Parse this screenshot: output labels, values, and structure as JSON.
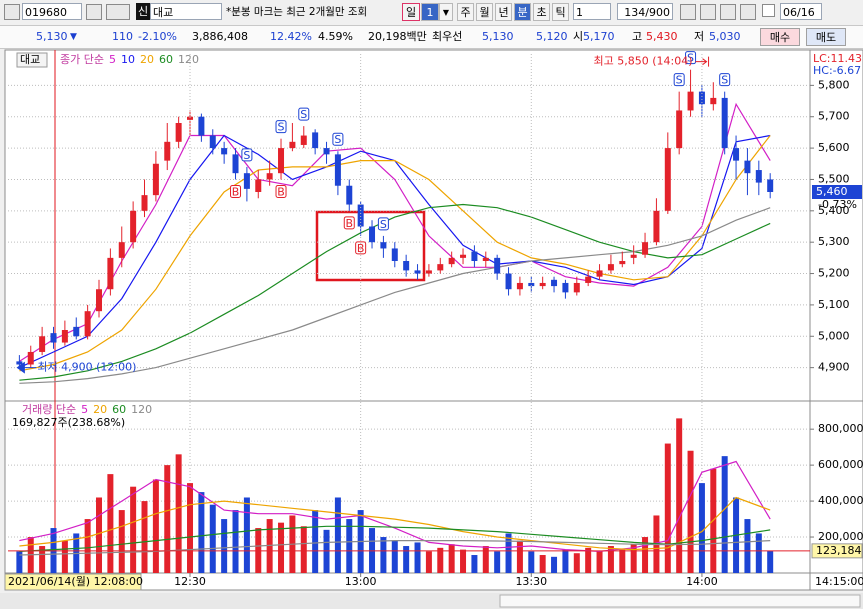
{
  "toolbar": {
    "code": "019680",
    "market": "신",
    "name": "대교",
    "notice": "*분봉 마크는 최근 2개월만 조회",
    "day": "일",
    "day_count": "1",
    "periods": [
      "주",
      "월",
      "년",
      "분",
      "초",
      "틱"
    ],
    "interval": "1",
    "count": "134/900",
    "date": "06/16"
  },
  "quote": {
    "price": "5,130",
    "arrow": "▼",
    "change": "110",
    "change_pct": "-2.10%",
    "volume": "3,886,408",
    "turnover_pct": "12.42%",
    "volume_ratio": "4.59%",
    "amount": "20,198백만",
    "best_label": "최우선",
    "ask": "5,130",
    "bid": "5,120",
    "open_label": "시",
    "open": "5,170",
    "high_label": "고",
    "high": "5,430",
    "low_label": "저",
    "low": "5,030",
    "buy": "매수",
    "sell": "매도"
  },
  "chart_data": [
    {
      "type": "candlestick",
      "name": "대교",
      "indicator_label": "종가 단순",
      "grid": true,
      "colors": {
        "up": "#e3222b",
        "down": "#1d44d4"
      },
      "xlim": [
        -2,
        139
      ],
      "ylim": [
        4800,
        5900
      ],
      "yticks": [
        {
          "value": 4900,
          "label": "4,900"
        },
        {
          "value": 5000,
          "label": "5,000"
        },
        {
          "value": 5100,
          "label": "5,100"
        },
        {
          "value": 5200,
          "label": "5,200"
        },
        {
          "value": 5300,
          "label": "5,300"
        },
        {
          "value": 5400,
          "label": "5,400"
        },
        {
          "value": 5500,
          "label": "5,500"
        },
        {
          "value": 5600,
          "label": "5,600"
        },
        {
          "value": 5700,
          "label": "5,700"
        },
        {
          "value": 5800,
          "label": "5,800"
        }
      ],
      "x": [
        0,
        2,
        4,
        6,
        8,
        10,
        12,
        14,
        16,
        18,
        20,
        22,
        24,
        26,
        28,
        30,
        32,
        34,
        36,
        38,
        40,
        42,
        44,
        46,
        48,
        50,
        52,
        54,
        56,
        58,
        60,
        62,
        64,
        66,
        68,
        70,
        72,
        74,
        76,
        78,
        80,
        82,
        84,
        86,
        88,
        90,
        92,
        94,
        96,
        98,
        100,
        102,
        104,
        106,
        108,
        110,
        112,
        114,
        116,
        118,
        120,
        122,
        124,
        126,
        128,
        130,
        132
      ],
      "open": [
        4920,
        4910,
        4950,
        5010,
        4980,
        5030,
        5000,
        5080,
        5150,
        5250,
        5300,
        5400,
        5450,
        5560,
        5620,
        5690,
        5700,
        5640,
        5600,
        5580,
        5520,
        5460,
        5500,
        5520,
        5600,
        5610,
        5650,
        5600,
        5580,
        5480,
        5420,
        5350,
        5300,
        5280,
        5240,
        5210,
        5200,
        5210,
        5230,
        5250,
        5270,
        5240,
        5250,
        5200,
        5150,
        5170,
        5160,
        5180,
        5170,
        5140,
        5170,
        5190,
        5210,
        5230,
        5250,
        5260,
        5300,
        5400,
        5600,
        5720,
        5780,
        5740,
        5760,
        5600,
        5560,
        5530,
        5500
      ],
      "high": [
        4940,
        4970,
        5030,
        5030,
        5050,
        5060,
        5100,
        5180,
        5280,
        5350,
        5430,
        5500,
        5590,
        5680,
        5700,
        5720,
        5710,
        5660,
        5620,
        5600,
        5540,
        5530,
        5560,
        5630,
        5680,
        5670,
        5660,
        5620,
        5590,
        5500,
        5430,
        5370,
        5320,
        5300,
        5260,
        5230,
        5230,
        5250,
        5270,
        5280,
        5290,
        5270,
        5260,
        5220,
        5190,
        5190,
        5190,
        5190,
        5180,
        5190,
        5210,
        5230,
        5260,
        5270,
        5290,
        5330,
        5440,
        5650,
        5780,
        5850,
        5800,
        5810,
        5780,
        5640,
        5600,
        5560,
        5520
      ],
      "low": [
        4900,
        4900,
        4940,
        4960,
        4970,
        4990,
        4990,
        5060,
        5130,
        5220,
        5280,
        5380,
        5430,
        5530,
        5600,
        5640,
        5620,
        5580,
        5550,
        5500,
        5430,
        5440,
        5480,
        5500,
        5590,
        5600,
        5580,
        5550,
        5450,
        5400,
        5320,
        5280,
        5250,
        5220,
        5190,
        5180,
        5190,
        5200,
        5220,
        5230,
        5220,
        5220,
        5180,
        5130,
        5130,
        5140,
        5150,
        5140,
        5120,
        5130,
        5160,
        5180,
        5200,
        5220,
        5230,
        5250,
        5290,
        5390,
        5580,
        5700,
        5700,
        5720,
        5580,
        5500,
        5450,
        5450,
        5440
      ],
      "close": [
        4910,
        4950,
        5000,
        4980,
        5020,
        5000,
        5080,
        5150,
        5250,
        5300,
        5400,
        5450,
        5550,
        5620,
        5680,
        5700,
        5640,
        5600,
        5580,
        5520,
        5470,
        5500,
        5520,
        5600,
        5620,
        5640,
        5600,
        5580,
        5480,
        5420,
        5350,
        5300,
        5280,
        5240,
        5210,
        5200,
        5210,
        5230,
        5250,
        5260,
        5240,
        5250,
        5200,
        5150,
        5170,
        5160,
        5170,
        5160,
        5140,
        5170,
        5190,
        5210,
        5230,
        5240,
        5260,
        5300,
        5400,
        5600,
        5720,
        5780,
        5740,
        5760,
        5600,
        5560,
        5520,
        5490,
        5460
      ],
      "ma_x": [
        0,
        6,
        12,
        18,
        24,
        30,
        36,
        42,
        48,
        54,
        60,
        66,
        72,
        78,
        84,
        90,
        96,
        102,
        108,
        114,
        120,
        126,
        132
      ],
      "ma_series": [
        {
          "name": "5",
          "color": "#d21fc6",
          "values": [
            4920,
            4990,
            5040,
            5240,
            5420,
            5640,
            5640,
            5500,
            5480,
            5590,
            5600,
            5500,
            5320,
            5220,
            5220,
            5240,
            5190,
            5170,
            5160,
            5220,
            5350,
            5740,
            5560
          ]
        },
        {
          "name": "10",
          "color": "#1717f0",
          "values": [
            4900,
            4950,
            5000,
            5120,
            5300,
            5500,
            5640,
            5580,
            5500,
            5540,
            5590,
            5560,
            5420,
            5290,
            5230,
            5240,
            5220,
            5180,
            5165,
            5190,
            5280,
            5620,
            5640
          ]
        },
        {
          "name": "20",
          "color": "#eea400",
          "values": [
            4890,
            4910,
            4950,
            5020,
            5150,
            5320,
            5460,
            5530,
            5540,
            5540,
            5560,
            5560,
            5500,
            5400,
            5300,
            5250,
            5230,
            5200,
            5180,
            5190,
            5320,
            5500,
            5640
          ]
        },
        {
          "name": "60",
          "color": "#1c8c22",
          "values": [
            4860,
            4870,
            4890,
            4920,
            4960,
            5010,
            5070,
            5130,
            5200,
            5270,
            5330,
            5380,
            5410,
            5420,
            5410,
            5380,
            5340,
            5300,
            5270,
            5250,
            5260,
            5310,
            5360
          ]
        },
        {
          "name": "120",
          "color": "#8a8a8a",
          "values": [
            4850,
            4855,
            4865,
            4880,
            4900,
            4930,
            4960,
            4990,
            5020,
            5060,
            5100,
            5140,
            5170,
            5200,
            5220,
            5240,
            5250,
            5260,
            5270,
            5290,
            5320,
            5370,
            5410
          ]
        }
      ],
      "signals": [
        {
          "x": 38,
          "label": "B"
        },
        {
          "x": 40,
          "label": "S"
        },
        {
          "x": 46,
          "label": "B"
        },
        {
          "x": 46,
          "label": "S"
        },
        {
          "x": 50,
          "label": "S"
        },
        {
          "x": 56,
          "label": "S"
        },
        {
          "x": 58,
          "label": "B"
        },
        {
          "x": 60,
          "label": "B"
        },
        {
          "x": 64,
          "label": "S"
        },
        {
          "x": 116,
          "label": "S"
        },
        {
          "x": 118,
          "label": "S"
        },
        {
          "x": 124,
          "label": "S"
        }
      ],
      "high_label": "최고 5,850 (14:04)",
      "low_label": "최저 4,900 (12:00)",
      "lc_label": "LC:11.43",
      "hc_label": "HC:-6.67",
      "last_label": "5,460",
      "change_label": "-0.73%"
    },
    {
      "type": "bar",
      "indicator_label": "거래량 단순",
      "info": "169,827주(238.68%)",
      "grid": true,
      "xlim": [
        -2,
        139
      ],
      "ylim": [
        0,
        940000
      ],
      "xticks": [
        {
          "value": 30,
          "label": "12:30"
        },
        {
          "value": 60,
          "label": "13:00"
        },
        {
          "value": 90,
          "label": "13:30"
        },
        {
          "value": 120,
          "label": "14:00"
        }
      ],
      "yticks": [
        {
          "value": 200000,
          "label": "200,000"
        },
        {
          "value": 400000,
          "label": "400,000"
        },
        {
          "value": 600000,
          "label": "600,000"
        },
        {
          "value": 800000,
          "label": "800,000"
        }
      ],
      "x": [
        0,
        2,
        4,
        6,
        8,
        10,
        12,
        14,
        16,
        18,
        20,
        22,
        24,
        26,
        28,
        30,
        32,
        34,
        36,
        38,
        40,
        42,
        44,
        46,
        48,
        50,
        52,
        54,
        56,
        58,
        60,
        62,
        64,
        66,
        68,
        70,
        72,
        74,
        76,
        78,
        80,
        82,
        84,
        86,
        88,
        90,
        92,
        94,
        96,
        98,
        100,
        102,
        104,
        106,
        108,
        110,
        112,
        114,
        116,
        118,
        120,
        122,
        124,
        126,
        128,
        130,
        132
      ],
      "values": [
        120000,
        200000,
        150000,
        250000,
        180000,
        220000,
        300000,
        420000,
        550000,
        350000,
        480000,
        400000,
        520000,
        600000,
        660000,
        500000,
        450000,
        380000,
        300000,
        350000,
        420000,
        250000,
        300000,
        280000,
        320000,
        260000,
        350000,
        240000,
        420000,
        300000,
        350000,
        250000,
        200000,
        180000,
        150000,
        170000,
        120000,
        140000,
        160000,
        130000,
        100000,
        150000,
        120000,
        220000,
        180000,
        120000,
        100000,
        90000,
        130000,
        110000,
        140000,
        120000,
        150000,
        130000,
        160000,
        200000,
        320000,
        720000,
        860000,
        680000,
        500000,
        580000,
        650000,
        420000,
        300000,
        220000,
        123184
      ],
      "ma_x": [
        0,
        6,
        12,
        18,
        24,
        30,
        36,
        42,
        48,
        54,
        60,
        66,
        72,
        78,
        84,
        90,
        96,
        102,
        108,
        114,
        120,
        126,
        132
      ],
      "ma_series": [
        {
          "name": "5",
          "color": "#d21fc6",
          "values": [
            180000,
            220000,
            280000,
            400000,
            520000,
            480000,
            350000,
            330000,
            330000,
            300000,
            320000,
            250000,
            170000,
            150000,
            140000,
            150000,
            130000,
            120000,
            140000,
            180000,
            560000,
            620000,
            300000
          ]
        },
        {
          "name": "20",
          "color": "#eea400",
          "values": [
            150000,
            170000,
            200000,
            260000,
            330000,
            380000,
            400000,
            380000,
            360000,
            340000,
            320000,
            300000,
            270000,
            230000,
            200000,
            180000,
            160000,
            140000,
            130000,
            140000,
            230000,
            420000,
            350000
          ]
        },
        {
          "name": "60",
          "color": "#1c8c22",
          "values": [
            120000,
            130000,
            140000,
            160000,
            180000,
            200000,
            220000,
            240000,
            250000,
            260000,
            260000,
            255000,
            250000,
            240000,
            230000,
            215000,
            200000,
            185000,
            170000,
            160000,
            180000,
            210000,
            240000
          ]
        },
        {
          "name": "120",
          "color": "#8a8a8a",
          "values": [
            100000,
            105000,
            110000,
            115000,
            120000,
            130000,
            140000,
            150000,
            160000,
            170000,
            175000,
            180000,
            180000,
            180000,
            178000,
            175000,
            170000,
            165000,
            160000,
            158000,
            160000,
            170000,
            180000
          ]
        }
      ],
      "last_label": "123,184",
      "start_label": "2021/06/14(월) 12:08:00",
      "end_label": "14:15:00"
    }
  ]
}
